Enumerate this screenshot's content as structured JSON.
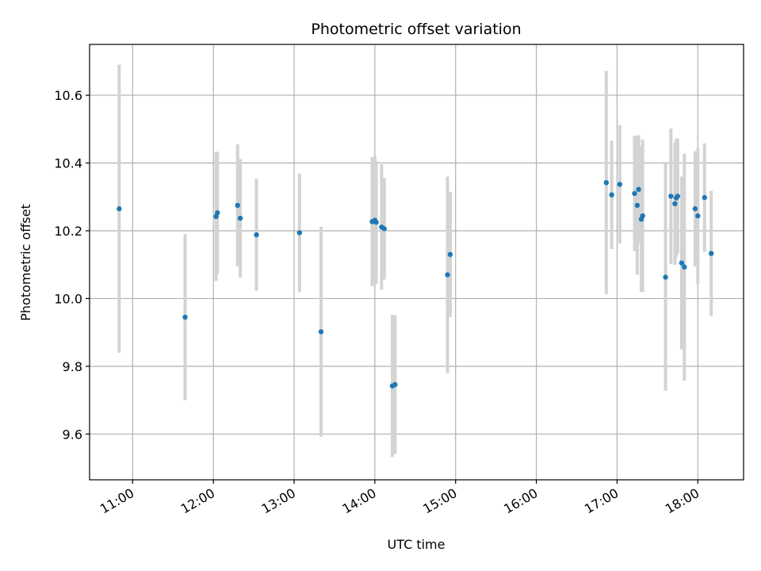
{
  "chart_data": {
    "type": "scatter",
    "title": "Photometric offset variation",
    "xlabel": "UTC time",
    "ylabel": "Photometric offset",
    "x_unit": "UTC time of day (HH:MM)",
    "xlim": [
      "10:28",
      "18:34"
    ],
    "ylim": [
      9.465,
      10.75
    ],
    "xticks": [
      "11:00",
      "12:00",
      "13:00",
      "14:00",
      "15:00",
      "16:00",
      "17:00",
      "18:00"
    ],
    "yticks": [
      9.6,
      9.8,
      10.0,
      10.2,
      10.4,
      10.6
    ],
    "grid": true,
    "legend": "none",
    "colors": {
      "marker": "#1f77b4",
      "errorbar": "#d3d3d3",
      "grid": "#b0b0b0"
    },
    "series": [
      {
        "points": [
          {
            "x": "10:50",
            "y": 10.265,
            "err": 0.425
          },
          {
            "x": "11:39",
            "y": 9.945,
            "err": 0.245
          },
          {
            "x": "12:02",
            "y": 10.242,
            "err": 0.19
          },
          {
            "x": "12:03",
            "y": 10.253,
            "err": 0.18
          },
          {
            "x": "12:18",
            "y": 10.275,
            "err": 0.18
          },
          {
            "x": "12:20",
            "y": 10.237,
            "err": 0.175
          },
          {
            "x": "12:32",
            "y": 10.188,
            "err": 0.165
          },
          {
            "x": "13:04",
            "y": 10.194,
            "err": 0.175
          },
          {
            "x": "13:20",
            "y": 9.902,
            "err": 0.31
          },
          {
            "x": "13:58",
            "y": 10.227,
            "err": 0.19
          },
          {
            "x": "14:00",
            "y": 10.231,
            "err": 0.19
          },
          {
            "x": "14:01",
            "y": 10.225,
            "err": 0.18
          },
          {
            "x": "14:05",
            "y": 10.211,
            "err": 0.185
          },
          {
            "x": "14:07",
            "y": 10.206,
            "err": 0.15
          },
          {
            "x": "14:13",
            "y": 9.742,
            "err": 0.21
          },
          {
            "x": "14:15",
            "y": 9.746,
            "err": 0.205
          },
          {
            "x": "14:54",
            "y": 10.07,
            "err": 0.29
          },
          {
            "x": "14:56",
            "y": 10.13,
            "err": 0.185
          },
          {
            "x": "16:52",
            "y": 10.342,
            "err": 0.33
          },
          {
            "x": "16:56",
            "y": 10.306,
            "err": 0.16
          },
          {
            "x": "17:02",
            "y": 10.337,
            "err": 0.175
          },
          {
            "x": "17:13",
            "y": 10.31,
            "err": 0.17
          },
          {
            "x": "17:15",
            "y": 10.275,
            "err": 0.205
          },
          {
            "x": "17:16",
            "y": 10.322,
            "err": 0.16
          },
          {
            "x": "17:18",
            "y": 10.234,
            "err": 0.215
          },
          {
            "x": "17:19",
            "y": 10.244,
            "err": 0.225
          },
          {
            "x": "17:36",
            "y": 10.063,
            "err": 0.335
          },
          {
            "x": "17:40",
            "y": 10.302,
            "err": 0.2
          },
          {
            "x": "17:43",
            "y": 10.28,
            "err": 0.18
          },
          {
            "x": "17:44",
            "y": 10.297,
            "err": 0.175
          },
          {
            "x": "17:45",
            "y": 10.302,
            "err": 0.17
          },
          {
            "x": "17:48",
            "y": 10.105,
            "err": 0.255
          },
          {
            "x": "17:50",
            "y": 10.093,
            "err": 0.335
          },
          {
            "x": "17:58",
            "y": 10.265,
            "err": 0.17
          },
          {
            "x": "18:00",
            "y": 10.244,
            "err": 0.2
          },
          {
            "x": "18:05",
            "y": 10.298,
            "err": 0.16
          },
          {
            "x": "18:10",
            "y": 10.133,
            "err": 0.185
          }
        ]
      }
    ]
  }
}
